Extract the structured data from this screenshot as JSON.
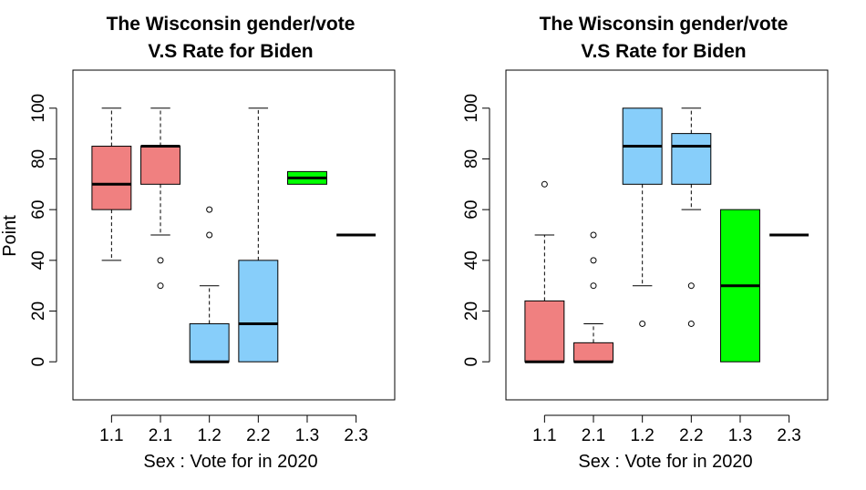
{
  "chart_data": [
    {
      "type": "boxplot",
      "title_line1": "The Wisconsin gender/vote",
      "title_line2": "V.S Rate for Biden",
      "xlabel": "Sex : Vote for in 2020",
      "ylabel": "Point",
      "ylim": [
        -15,
        115
      ],
      "yticks": [
        "0",
        "20",
        "40",
        "60",
        "80",
        "100"
      ],
      "categories": [
        "1.1",
        "2.1",
        "1.2",
        "2.2",
        "1.3",
        "2.3"
      ],
      "boxes": [
        {
          "category": "1.1",
          "whisker_low": 40,
          "q1": 60,
          "median": 70,
          "q3": 85,
          "whisker_high": 100,
          "outliers": [],
          "color": "#f08080"
        },
        {
          "category": "2.1",
          "whisker_low": 50,
          "q1": 70,
          "median": 85,
          "q3": 85,
          "whisker_high": 100,
          "outliers": [
            40,
            30
          ],
          "color": "#f08080"
        },
        {
          "category": "1.2",
          "whisker_low": 0,
          "q1": 0,
          "median": 0,
          "q3": 15,
          "whisker_high": 30,
          "outliers": [
            60,
            50
          ],
          "color": "#87cefa"
        },
        {
          "category": "2.2",
          "whisker_low": 0,
          "q1": 0,
          "median": 15,
          "q3": 40,
          "whisker_high": 100,
          "outliers": [],
          "color": "#87cefa"
        },
        {
          "category": "1.3",
          "whisker_low": 70,
          "q1": 70,
          "median": 72.5,
          "q3": 75,
          "whisker_high": 75,
          "outliers": [],
          "color": "#00ff00"
        },
        {
          "category": "2.3",
          "whisker_low": 50,
          "q1": 50,
          "median": 50,
          "q3": 50,
          "whisker_high": 50,
          "outliers": [],
          "color": "#00ff00"
        }
      ]
    },
    {
      "type": "boxplot",
      "title_line1": "The Wisconsin gender/vote",
      "title_line2": "V.S Rate for Biden",
      "xlabel": "Sex : Vote for in 2020",
      "ylabel": "",
      "ylim": [
        -15,
        115
      ],
      "yticks": [
        "0",
        "20",
        "40",
        "60",
        "80",
        "100"
      ],
      "categories": [
        "1.1",
        "2.1",
        "1.2",
        "2.2",
        "1.3",
        "2.3"
      ],
      "boxes": [
        {
          "category": "1.1",
          "whisker_low": 0,
          "q1": 0,
          "median": 0,
          "q3": 24,
          "whisker_high": 50,
          "outliers": [
            70
          ],
          "color": "#f08080"
        },
        {
          "category": "2.1",
          "whisker_low": 0,
          "q1": 0,
          "median": 0,
          "q3": 7.5,
          "whisker_high": 15,
          "outliers": [
            50,
            40,
            30
          ],
          "color": "#f08080"
        },
        {
          "category": "1.2",
          "whisker_low": 30,
          "q1": 70,
          "median": 85,
          "q3": 100,
          "whisker_high": 100,
          "outliers": [
            15
          ],
          "color": "#87cefa"
        },
        {
          "category": "2.2",
          "whisker_low": 60,
          "q1": 70,
          "median": 85,
          "q3": 90,
          "whisker_high": 100,
          "outliers": [
            30,
            15
          ],
          "color": "#87cefa"
        },
        {
          "category": "1.3",
          "whisker_low": 0,
          "q1": 0,
          "median": 30,
          "q3": 60,
          "whisker_high": 60,
          "outliers": [],
          "color": "#00ff00"
        },
        {
          "category": "2.3",
          "whisker_low": 50,
          "q1": 50,
          "median": 50,
          "q3": 50,
          "whisker_high": 50,
          "outliers": [],
          "color": "#00ff00"
        }
      ]
    }
  ]
}
